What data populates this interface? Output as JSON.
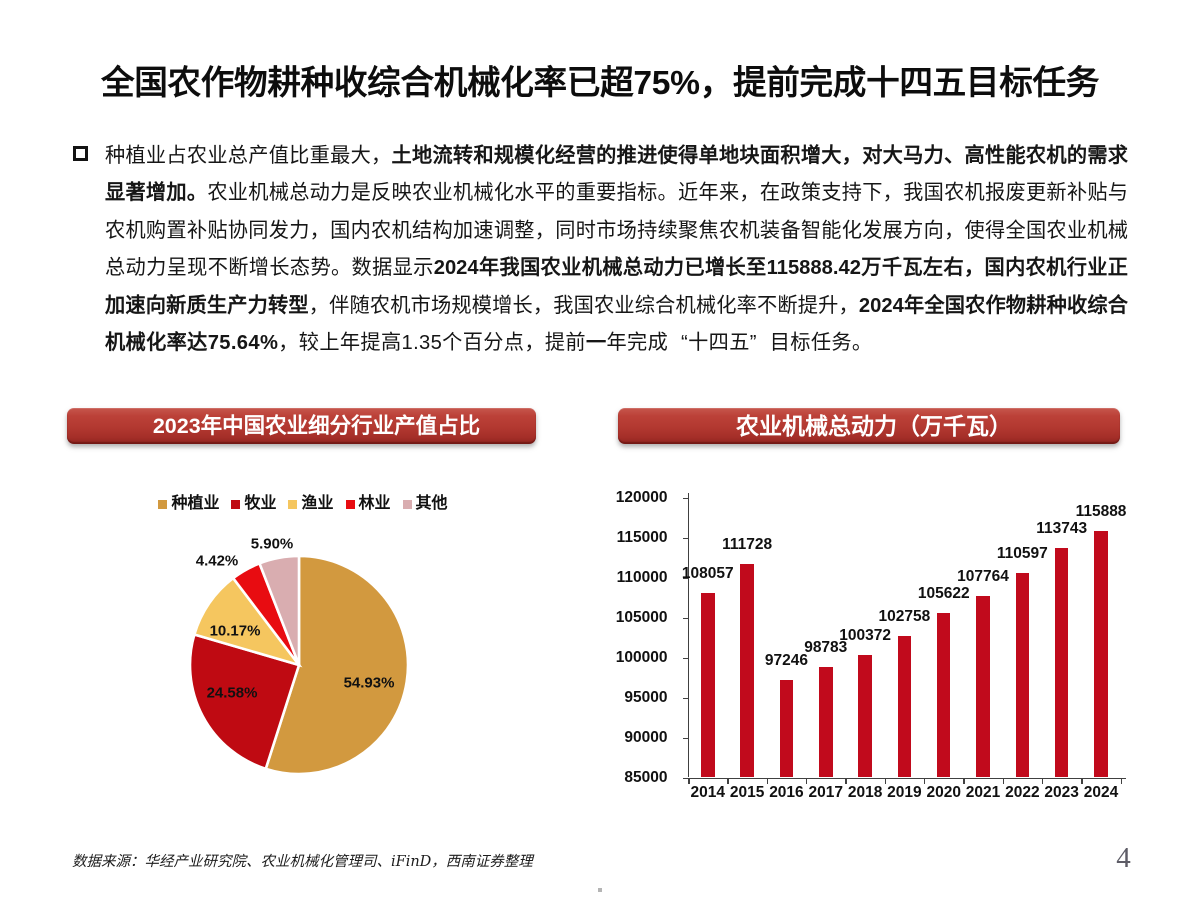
{
  "page": {
    "title": "全国农作物耕种收综合机械化率已超75%，提前完成十四五目标任务",
    "page_number": "4",
    "source_note": "数据来源：华经产业研究院、农业机械化管理司、iFinD，西南证券整理"
  },
  "paragraph": {
    "bullet": "square-outline",
    "lines": [
      [
        {
          "t": "种植业占农业总产值比重最大，",
          "b": false
        },
        {
          "t": "土地流转和规模化经营的推进使得单地块面积增大，对大马力、高性能农机的需求",
          "b": true
        }
      ],
      [
        {
          "t": "显著增加。",
          "b": true
        },
        {
          "t": "农业机械总动力是反映农业机械化水平的重要指标。近年来，在政策支持下，我国农机报废更新补贴与",
          "b": false
        }
      ],
      [
        {
          "t": "农机购置补贴协同发力，国内农机结构加速调整，同时市场持续聚焦农机装备智能化发展方向，使得全国农业机械",
          "b": false
        }
      ],
      [
        {
          "t": "总动力呈现不断增长态势。数据显示",
          "b": false
        },
        {
          "t": "2024年我国农业机械总动力已增长至115888.42万千瓦左右，国内农机行业正",
          "b": true
        }
      ],
      [
        {
          "t": "加速向新质生产力转型",
          "b": true
        },
        {
          "t": "，伴随农机市场规模增长，我国农业综合机械化率不断提升，",
          "b": false
        },
        {
          "t": "2024年全国农作物耕种收综合",
          "b": true
        }
      ],
      [
        {
          "t": "机械化率达75.64%",
          "b": true
        },
        {
          "t": "，较上年提高1.35个百分点，提前",
          "b": false
        },
        {
          "t": "一",
          "b": true
        },
        {
          "t": "年完成“十四五”目标任务。",
          "b": false
        }
      ]
    ]
  },
  "pie_chart": {
    "banner_title": "2023年中国农业细分行业产值占比",
    "legend": [
      "种植业",
      "牧业",
      "渔业",
      "林业",
      "其他"
    ],
    "labels": [
      "54.93%",
      "24.58%",
      "10.17%",
      "4.42%",
      "5.90%"
    ],
    "values": [
      54.93,
      24.58,
      10.17,
      4.42,
      5.9
    ],
    "colors": [
      "#d2993f",
      "#bf0a12",
      "#f5c65f",
      "#e80c11",
      "#d9adb0"
    ]
  },
  "bar_chart": {
    "banner_title": "农业机械总动力（万千瓦）",
    "categories": [
      "2014",
      "2015",
      "2016",
      "2017",
      "2018",
      "2019",
      "2020",
      "2021",
      "2022",
      "2023",
      "2024"
    ],
    "values": [
      108057,
      111728,
      97246,
      98783,
      100372,
      102758,
      105622,
      107764,
      110597,
      113743,
      115888
    ],
    "y_min": 85000,
    "y_max": 120000,
    "y_step": 5000,
    "bar_color": "#c10a1c"
  },
  "chart_data": [
    {
      "type": "pie",
      "title": "2023年中国农业细分行业产值占比",
      "categories": [
        "种植业",
        "牧业",
        "渔业",
        "林业",
        "其他"
      ],
      "values": [
        54.93,
        24.58,
        10.17,
        4.42,
        5.9
      ],
      "unit": "%",
      "legend_position": "top",
      "colors": [
        "#d2993f",
        "#bf0a12",
        "#f5c65f",
        "#e80c11",
        "#d9adb0"
      ],
      "start_angle": "12-oclock",
      "direction": "clockwise"
    },
    {
      "type": "bar",
      "title": "农业机械总动力（万千瓦）",
      "categories": [
        "2014",
        "2015",
        "2016",
        "2017",
        "2018",
        "2019",
        "2020",
        "2021",
        "2022",
        "2023",
        "2024"
      ],
      "values": [
        108057,
        111728,
        97246,
        98783,
        100372,
        102758,
        105622,
        107764,
        110597,
        113743,
        115888
      ],
      "xlabel": "",
      "ylabel": "",
      "ylim": [
        85000,
        120000
      ],
      "y_step": 5000,
      "grid": false,
      "bar_color": "#c10a1c",
      "value_labels": true
    }
  ]
}
